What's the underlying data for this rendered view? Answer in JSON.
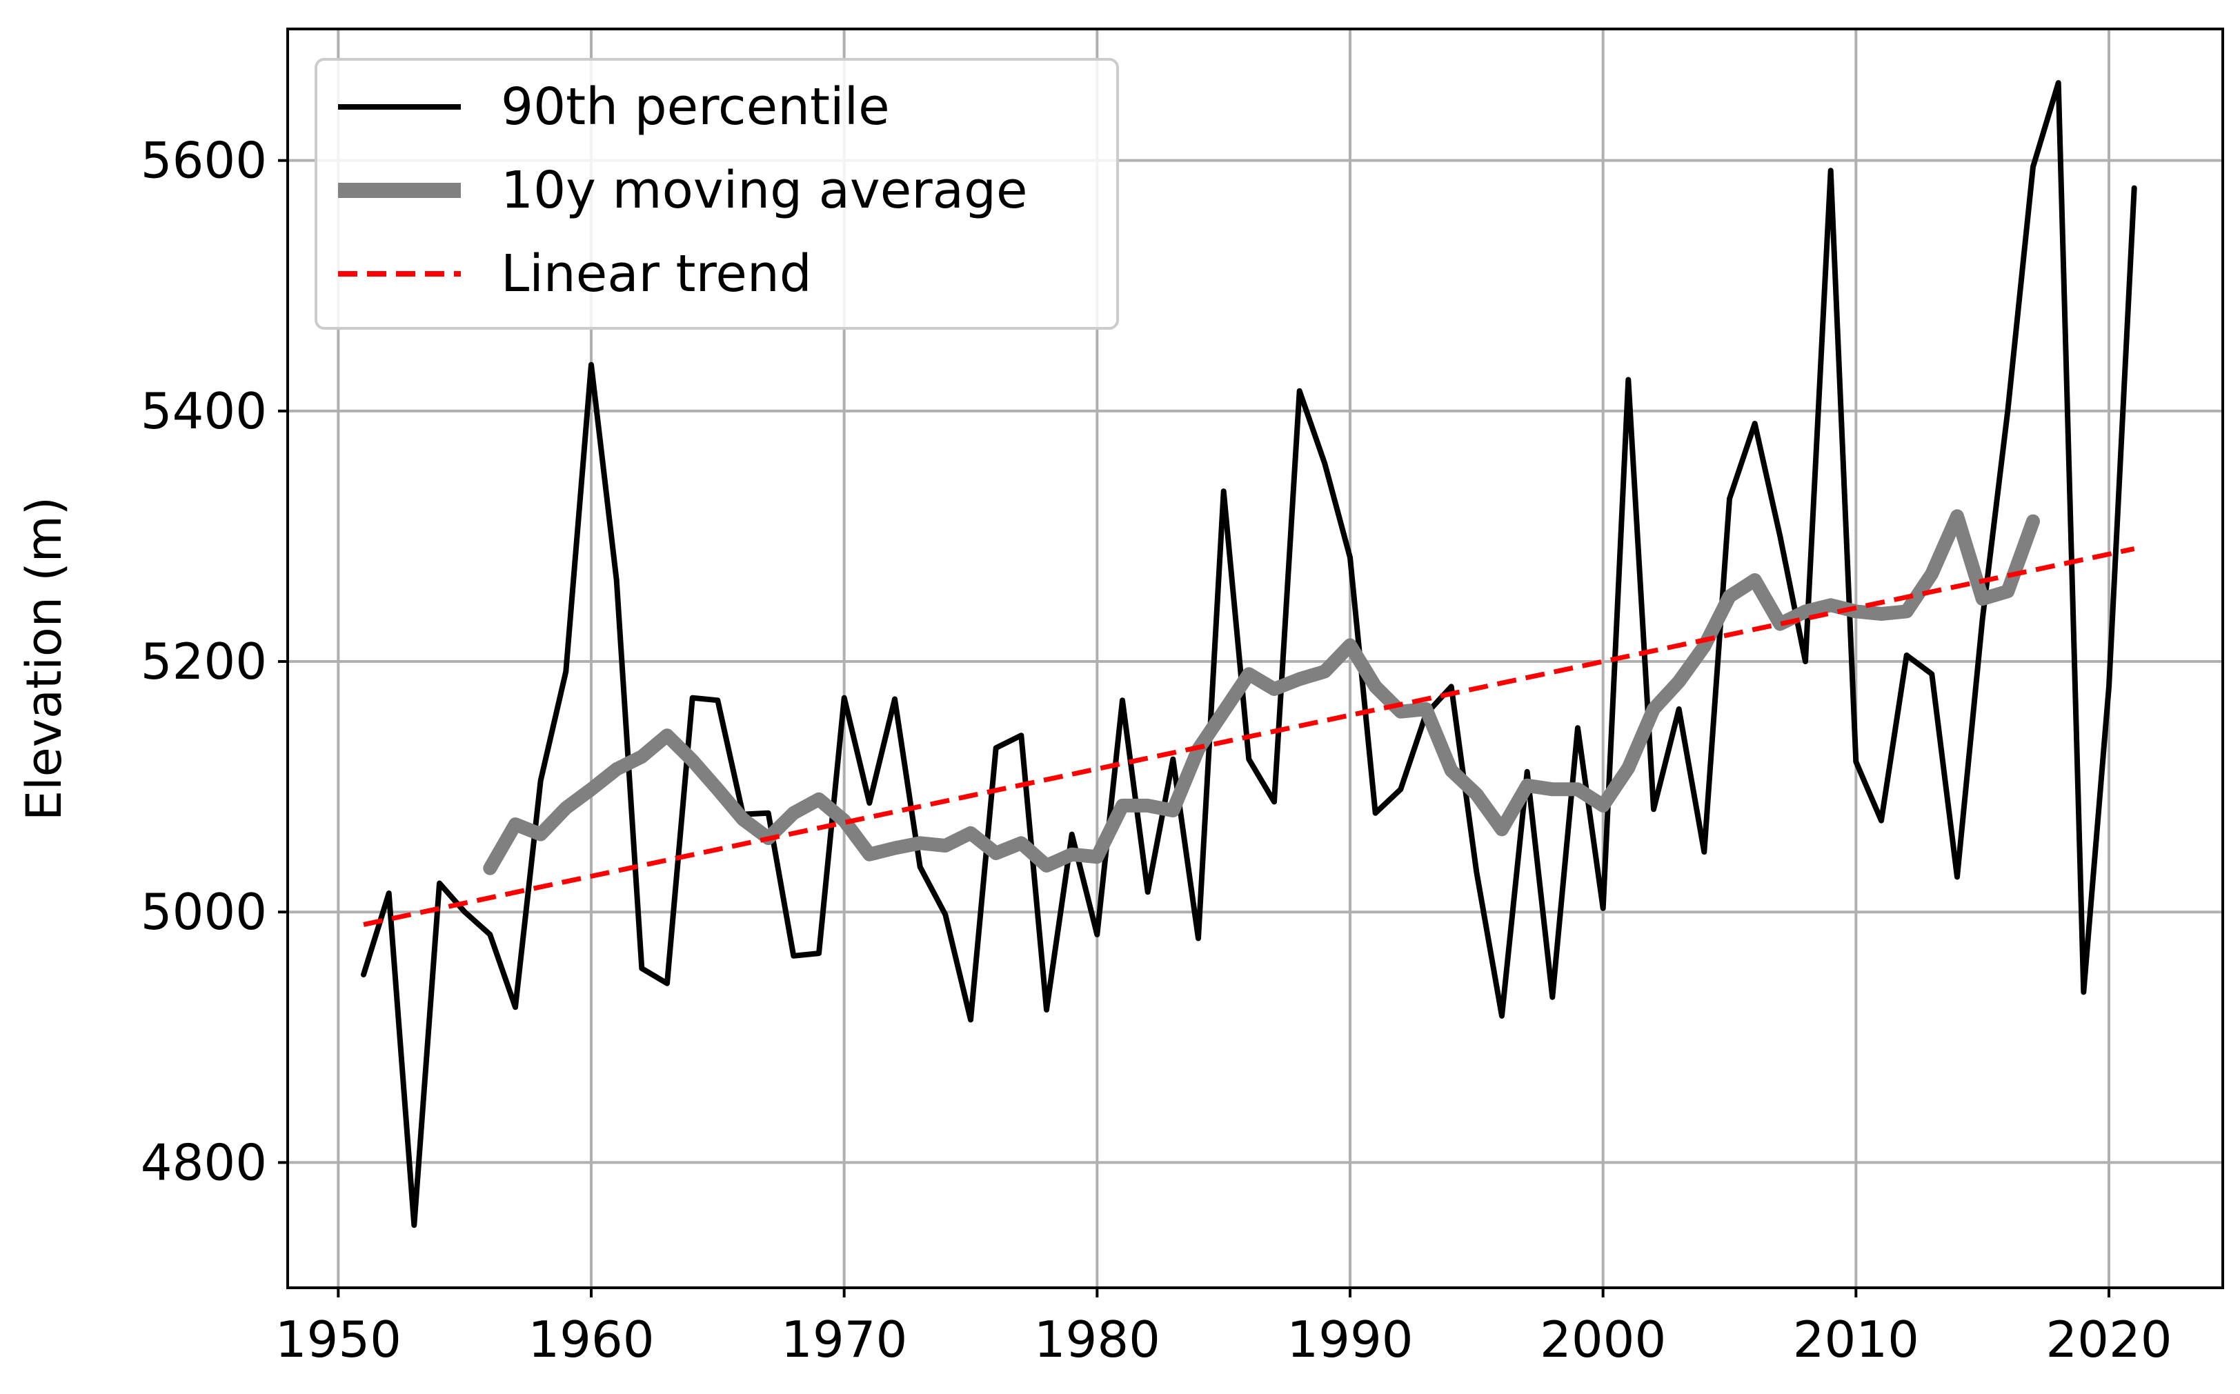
{
  "chart_data": {
    "type": "line",
    "title": "",
    "xlabel": "",
    "ylabel": "Elevation (m)",
    "xlim": [
      1948,
      2024.5
    ],
    "ylim": [
      4700,
      5705
    ],
    "xticks": [
      1950,
      1960,
      1970,
      1980,
      1990,
      2000,
      2010,
      2020
    ],
    "yticks": [
      4800,
      5000,
      5200,
      5400,
      5600
    ],
    "grid": true,
    "legend_position": "top-left",
    "series": [
      {
        "name": "90th percentile",
        "color": "#000000",
        "style": "solid",
        "x": [
          1951,
          1952,
          1953,
          1954,
          1955,
          1956,
          1957,
          1958,
          1959,
          1960,
          1961,
          1962,
          1963,
          1964,
          1965,
          1966,
          1967,
          1968,
          1969,
          1970,
          1971,
          1972,
          1973,
          1974,
          1975,
          1976,
          1977,
          1978,
          1979,
          1980,
          1981,
          1982,
          1983,
          1984,
          1985,
          1986,
          1987,
          1988,
          1989,
          1990,
          1991,
          1992,
          1993,
          1994,
          1995,
          1996,
          1997,
          1998,
          1999,
          2000,
          2001,
          2002,
          2003,
          2004,
          2005,
          2006,
          2007,
          2008,
          2009,
          2010,
          2011,
          2012,
          2013,
          2014,
          2015,
          2016,
          2017,
          2018,
          2019,
          2020,
          2021
        ],
        "values": [
          4950,
          5015,
          4750,
          5023,
          5000,
          4982,
          4924,
          5105,
          5192,
          5437,
          5265,
          4955,
          4943,
          5171,
          5169,
          5078,
          5079,
          4965,
          4967,
          5171,
          5087,
          5170,
          5036,
          4998,
          4914,
          5131,
          5141,
          4922,
          5062,
          4982,
          5169,
          5016,
          5122,
          4979,
          5336,
          5122,
          5088,
          5416,
          5358,
          5283,
          5079,
          5098,
          5158,
          5180,
          5032,
          4917,
          5112,
          4932,
          5147,
          5003,
          5425,
          5082,
          5162,
          5048,
          5330,
          5390,
          5300,
          5200,
          5592,
          5120,
          5073,
          5205,
          5190,
          5028,
          5234,
          5400,
          5595,
          5662,
          4936,
          5180,
          5578
        ]
      },
      {
        "name": "10y moving average",
        "color": "#808080",
        "style": "solid",
        "x": [
          1956,
          1957,
          1958,
          1959,
          1960,
          1961,
          1962,
          1963,
          1964,
          1965,
          1966,
          1967,
          1968,
          1969,
          1970,
          1971,
          1972,
          1973,
          1974,
          1975,
          1976,
          1977,
          1978,
          1979,
          1980,
          1981,
          1982,
          1983,
          1984,
          1985,
          1986,
          1987,
          1988,
          1989,
          1990,
          1991,
          1992,
          1993,
          1994,
          1995,
          1996,
          1997,
          1998,
          1999,
          2000,
          2001,
          2002,
          2003,
          2004,
          2005,
          2006,
          2007,
          2008,
          2009,
          2010,
          2011,
          2012,
          2013,
          2014,
          2015,
          2016,
          2017
        ],
        "values": [
          5035,
          5070,
          5062,
          5083,
          5098,
          5114,
          5124,
          5141,
          5121,
          5098,
          5074,
          5059,
          5079,
          5090,
          5073,
          5046,
          5051,
          5055,
          5053,
          5063,
          5047,
          5055,
          5037,
          5046,
          5044,
          5085,
          5085,
          5081,
          5130,
          5160,
          5190,
          5178,
          5186,
          5192,
          5213,
          5180,
          5160,
          5162,
          5113,
          5094,
          5066,
          5101,
          5098,
          5098,
          5085,
          5115,
          5162,
          5184,
          5212,
          5252,
          5265,
          5230,
          5240,
          5245,
          5240,
          5238,
          5240,
          5270,
          5316,
          5250,
          5256,
          5312
        ]
      },
      {
        "name": "Linear trend",
        "color": "#ff0000",
        "style": "dashed",
        "x": [
          1951,
          2021
        ],
        "values": [
          4990,
          5290
        ]
      }
    ]
  }
}
